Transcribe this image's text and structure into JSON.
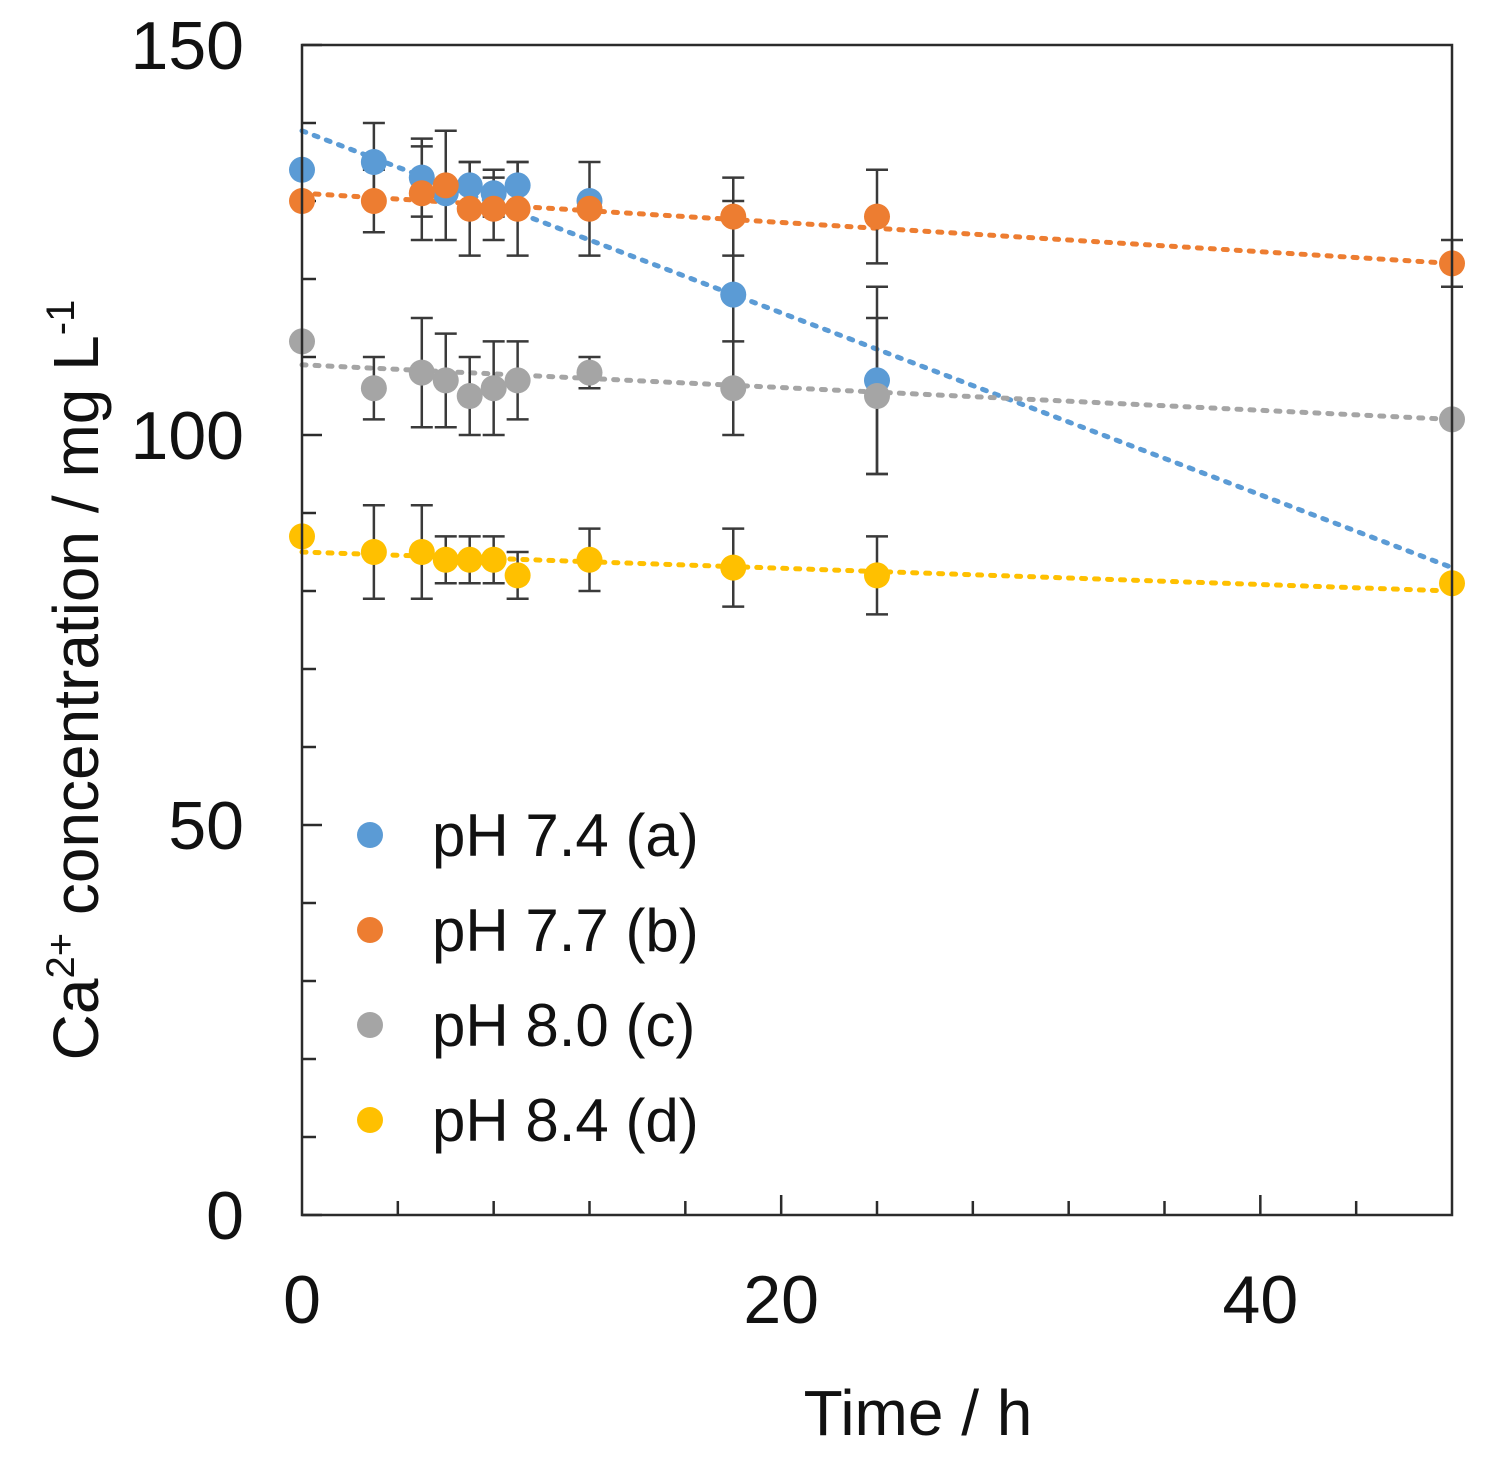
{
  "chart_data": {
    "type": "scatter",
    "title": "",
    "xlabel": "Time / h",
    "ylabel": {
      "prefix": "Ca",
      "superscript": "2+",
      "middle": " concentration / mg L",
      "unit_superscript": "-1"
    },
    "xlim": [
      0,
      48
    ],
    "ylim": [
      0,
      150
    ],
    "x_major_ticks": [
      0,
      20,
      40
    ],
    "x_minor_step": 4,
    "y_major_ticks": [
      0,
      50,
      100,
      150
    ],
    "y_minor_step": 10,
    "legend_position": "bottom-left",
    "series": [
      {
        "name": "pH 7.4 (a)",
        "color": "#5b9bd5",
        "points": [
          {
            "x": 0,
            "y": 134,
            "err": 0
          },
          {
            "x": 3,
            "y": 135,
            "err": 5
          },
          {
            "x": 5,
            "y": 133,
            "err": 5
          },
          {
            "x": 6,
            "y": 131,
            "err": 0
          },
          {
            "x": 7,
            "y": 132,
            "err": 3
          },
          {
            "x": 8,
            "y": 131,
            "err": 3
          },
          {
            "x": 9,
            "y": 132,
            "err": 3
          },
          {
            "x": 12,
            "y": 130,
            "err": 0
          },
          {
            "x": 18,
            "y": 118,
            "err": 12
          },
          {
            "x": 24,
            "y": 107,
            "err": 12
          }
        ],
        "trend": {
          "x0": 0,
          "y0": 139,
          "x1": 48,
          "y1": 83
        }
      },
      {
        "name": "pH 7.7 (b)",
        "color": "#ed7d31",
        "points": [
          {
            "x": 0,
            "y": 130,
            "err": 0
          },
          {
            "x": 3,
            "y": 130,
            "err": 4
          },
          {
            "x": 5,
            "y": 131,
            "err": 6
          },
          {
            "x": 6,
            "y": 132,
            "err": 7
          },
          {
            "x": 7,
            "y": 129,
            "err": 6
          },
          {
            "x": 8,
            "y": 129,
            "err": 4
          },
          {
            "x": 9,
            "y": 129,
            "err": 6
          },
          {
            "x": 12,
            "y": 129,
            "err": 6
          },
          {
            "x": 18,
            "y": 128,
            "err": 5
          },
          {
            "x": 24,
            "y": 128,
            "err": 6
          },
          {
            "x": 48,
            "y": 122,
            "err": 3
          }
        ],
        "trend": {
          "x0": 0,
          "y0": 131,
          "x1": 48,
          "y1": 122
        }
      },
      {
        "name": "pH 8.0 (c)",
        "color": "#a5a5a5",
        "points": [
          {
            "x": 0,
            "y": 112,
            "err": 0
          },
          {
            "x": 3,
            "y": 106,
            "err": 4
          },
          {
            "x": 5,
            "y": 108,
            "err": 7
          },
          {
            "x": 6,
            "y": 107,
            "err": 6
          },
          {
            "x": 7,
            "y": 105,
            "err": 5
          },
          {
            "x": 8,
            "y": 106,
            "err": 6
          },
          {
            "x": 9,
            "y": 107,
            "err": 5
          },
          {
            "x": 12,
            "y": 108,
            "err": 2
          },
          {
            "x": 18,
            "y": 106,
            "err": 6
          },
          {
            "x": 24,
            "y": 105,
            "err": 10
          },
          {
            "x": 48,
            "y": 102,
            "err": 0
          }
        ],
        "trend": {
          "x0": 0,
          "y0": 109,
          "x1": 48,
          "y1": 102
        }
      },
      {
        "name": "pH 8.4 (d)",
        "color": "#ffc000",
        "points": [
          {
            "x": 0,
            "y": 87,
            "err": 0
          },
          {
            "x": 3,
            "y": 85,
            "err": 6
          },
          {
            "x": 5,
            "y": 85,
            "err": 6
          },
          {
            "x": 6,
            "y": 84,
            "err": 3
          },
          {
            "x": 7,
            "y": 84,
            "err": 3
          },
          {
            "x": 8,
            "y": 84,
            "err": 3
          },
          {
            "x": 9,
            "y": 82,
            "err": 3
          },
          {
            "x": 12,
            "y": 84,
            "err": 4
          },
          {
            "x": 18,
            "y": 83,
            "err": 5
          },
          {
            "x": 24,
            "y": 82,
            "err": 5
          },
          {
            "x": 48,
            "y": 81,
            "err": 0
          }
        ],
        "trend": {
          "x0": 0,
          "y0": 85,
          "x1": 48,
          "y1": 80
        }
      }
    ]
  }
}
